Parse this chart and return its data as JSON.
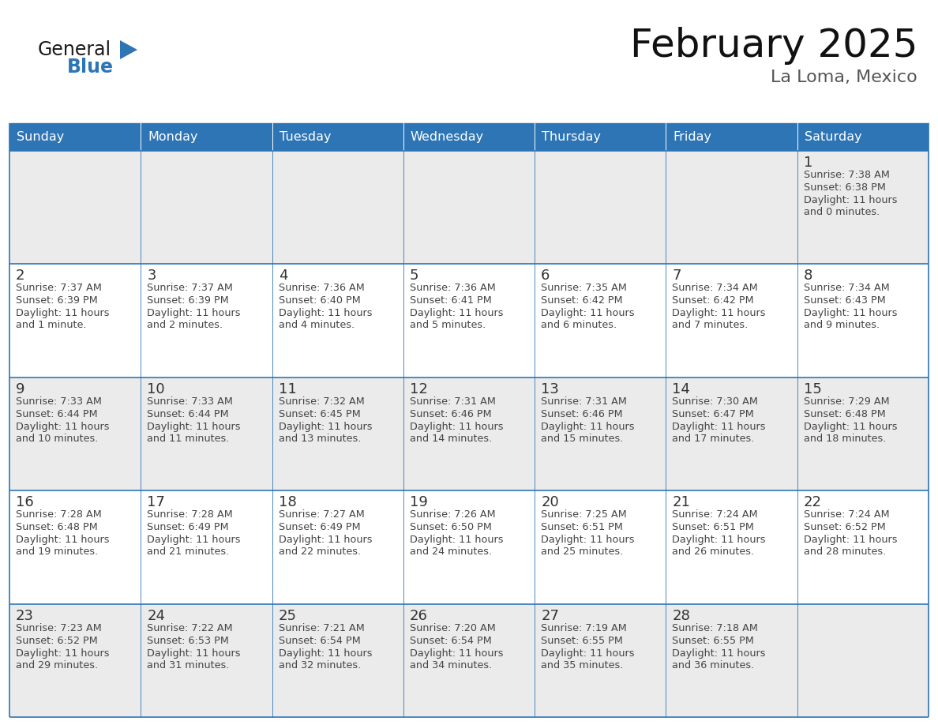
{
  "title": "February 2025",
  "subtitle": "La Loma, Mexico",
  "days_of_week": [
    "Sunday",
    "Monday",
    "Tuesday",
    "Wednesday",
    "Thursday",
    "Friday",
    "Saturday"
  ],
  "header_bg": "#2E75B6",
  "header_text": "#FFFFFF",
  "row_bg_odd": "#EBEBEB",
  "row_bg_even": "#FFFFFF",
  "border_color": "#2E75B6",
  "text_color": "#444444",
  "day_number_color": "#333333",
  "logo_general_color": "#1a1a1a",
  "logo_blue_color": "#2E75B6",
  "calendar_data": [
    [
      null,
      null,
      null,
      null,
      null,
      null,
      {
        "day": 1,
        "sunrise": "7:38 AM",
        "sunset": "6:38 PM",
        "daylight": "11 hours and 0 minutes."
      }
    ],
    [
      {
        "day": 2,
        "sunrise": "7:37 AM",
        "sunset": "6:39 PM",
        "daylight": "11 hours and 1 minute."
      },
      {
        "day": 3,
        "sunrise": "7:37 AM",
        "sunset": "6:39 PM",
        "daylight": "11 hours and 2 minutes."
      },
      {
        "day": 4,
        "sunrise": "7:36 AM",
        "sunset": "6:40 PM",
        "daylight": "11 hours and 4 minutes."
      },
      {
        "day": 5,
        "sunrise": "7:36 AM",
        "sunset": "6:41 PM",
        "daylight": "11 hours and 5 minutes."
      },
      {
        "day": 6,
        "sunrise": "7:35 AM",
        "sunset": "6:42 PM",
        "daylight": "11 hours and 6 minutes."
      },
      {
        "day": 7,
        "sunrise": "7:34 AM",
        "sunset": "6:42 PM",
        "daylight": "11 hours and 7 minutes."
      },
      {
        "day": 8,
        "sunrise": "7:34 AM",
        "sunset": "6:43 PM",
        "daylight": "11 hours and 9 minutes."
      }
    ],
    [
      {
        "day": 9,
        "sunrise": "7:33 AM",
        "sunset": "6:44 PM",
        "daylight": "11 hours and 10 minutes."
      },
      {
        "day": 10,
        "sunrise": "7:33 AM",
        "sunset": "6:44 PM",
        "daylight": "11 hours and 11 minutes."
      },
      {
        "day": 11,
        "sunrise": "7:32 AM",
        "sunset": "6:45 PM",
        "daylight": "11 hours and 13 minutes."
      },
      {
        "day": 12,
        "sunrise": "7:31 AM",
        "sunset": "6:46 PM",
        "daylight": "11 hours and 14 minutes."
      },
      {
        "day": 13,
        "sunrise": "7:31 AM",
        "sunset": "6:46 PM",
        "daylight": "11 hours and 15 minutes."
      },
      {
        "day": 14,
        "sunrise": "7:30 AM",
        "sunset": "6:47 PM",
        "daylight": "11 hours and 17 minutes."
      },
      {
        "day": 15,
        "sunrise": "7:29 AM",
        "sunset": "6:48 PM",
        "daylight": "11 hours and 18 minutes."
      }
    ],
    [
      {
        "day": 16,
        "sunrise": "7:28 AM",
        "sunset": "6:48 PM",
        "daylight": "11 hours and 19 minutes."
      },
      {
        "day": 17,
        "sunrise": "7:28 AM",
        "sunset": "6:49 PM",
        "daylight": "11 hours and 21 minutes."
      },
      {
        "day": 18,
        "sunrise": "7:27 AM",
        "sunset": "6:49 PM",
        "daylight": "11 hours and 22 minutes."
      },
      {
        "day": 19,
        "sunrise": "7:26 AM",
        "sunset": "6:50 PM",
        "daylight": "11 hours and 24 minutes."
      },
      {
        "day": 20,
        "sunrise": "7:25 AM",
        "sunset": "6:51 PM",
        "daylight": "11 hours and 25 minutes."
      },
      {
        "day": 21,
        "sunrise": "7:24 AM",
        "sunset": "6:51 PM",
        "daylight": "11 hours and 26 minutes."
      },
      {
        "day": 22,
        "sunrise": "7:24 AM",
        "sunset": "6:52 PM",
        "daylight": "11 hours and 28 minutes."
      }
    ],
    [
      {
        "day": 23,
        "sunrise": "7:23 AM",
        "sunset": "6:52 PM",
        "daylight": "11 hours and 29 minutes."
      },
      {
        "day": 24,
        "sunrise": "7:22 AM",
        "sunset": "6:53 PM",
        "daylight": "11 hours and 31 minutes."
      },
      {
        "day": 25,
        "sunrise": "7:21 AM",
        "sunset": "6:54 PM",
        "daylight": "11 hours and 32 minutes."
      },
      {
        "day": 26,
        "sunrise": "7:20 AM",
        "sunset": "6:54 PM",
        "daylight": "11 hours and 34 minutes."
      },
      {
        "day": 27,
        "sunrise": "7:19 AM",
        "sunset": "6:55 PM",
        "daylight": "11 hours and 35 minutes."
      },
      {
        "day": 28,
        "sunrise": "7:18 AM",
        "sunset": "6:55 PM",
        "daylight": "11 hours and 36 minutes."
      },
      null
    ]
  ]
}
